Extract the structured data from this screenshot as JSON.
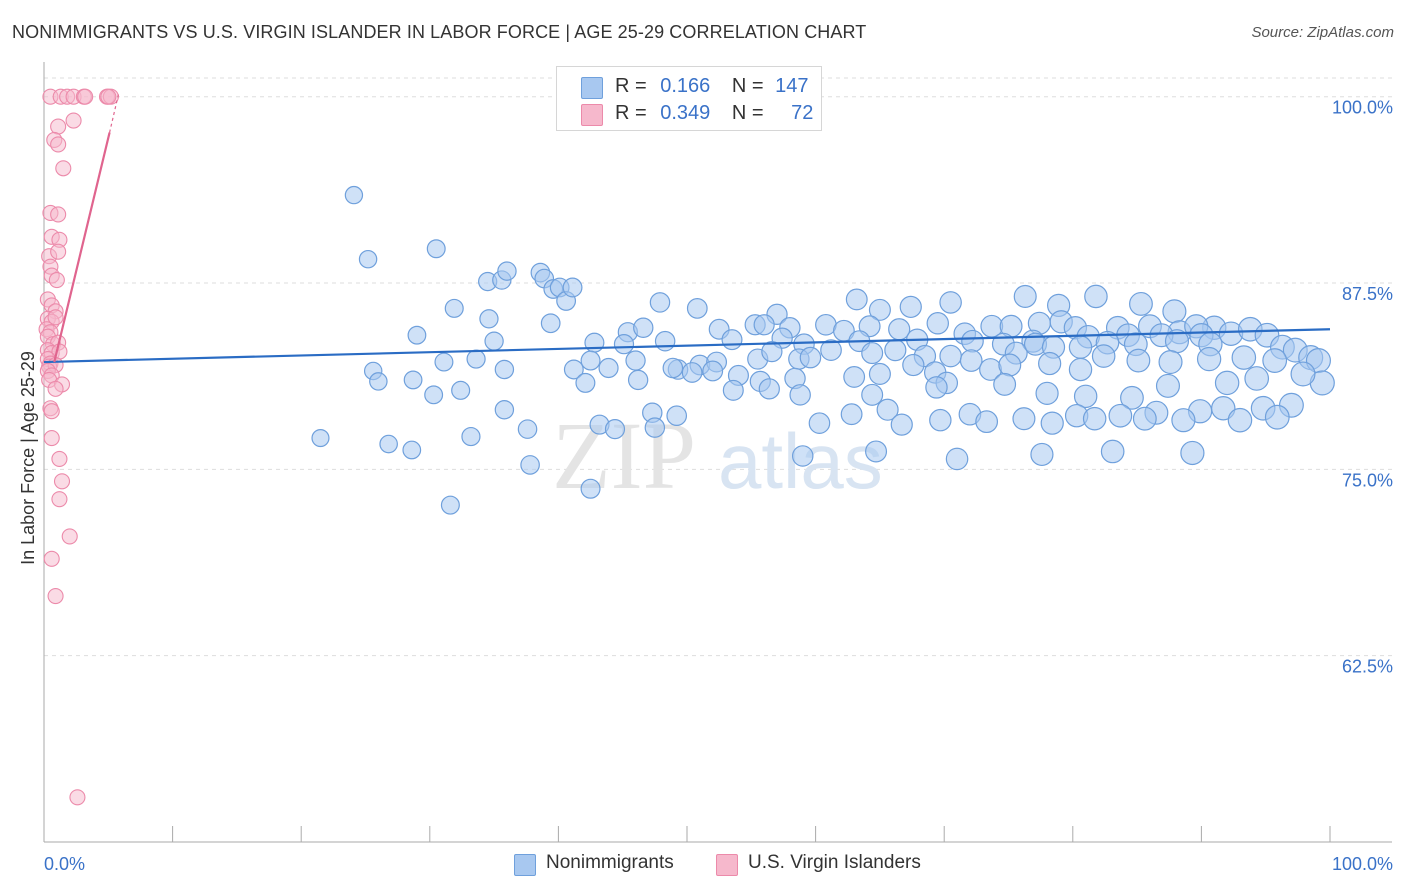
{
  "title": "NONIMMIGRANTS VS U.S. VIRGIN ISLANDER IN LABOR FORCE | AGE 25-29 CORRELATION CHART",
  "source": "Source: ZipAtlas.com",
  "watermark": {
    "zip": "ZIP",
    "atlas": "atlas"
  },
  "colors": {
    "blue_fill": "#a8c8f0",
    "blue_stroke": "#6fa0dc",
    "blue_line": "#2a6cc4",
    "pink_fill": "#f6b8cc",
    "pink_stroke": "#ec8aaa",
    "pink_line": "#e0648e",
    "axis_label": "#3a72c8",
    "grid": "#dddddd"
  },
  "legend": {
    "r_label": "R =",
    "n_label": "N =",
    "series": [
      {
        "r": "0.166",
        "n": "147"
      },
      {
        "r": "0.349",
        "n": "72"
      }
    ]
  },
  "chart_data": {
    "type": "scatter",
    "ylabel": "In Labor Force | Age 25-29",
    "xlim": [
      0,
      100
    ],
    "ylim": [
      50,
      103
    ],
    "x_tick_labels": [
      "0.0%",
      "100.0%"
    ],
    "y_ticks": [
      62.5,
      75.0,
      87.5,
      100.0
    ],
    "y_tick_labels": [
      "62.5%",
      "75.0%",
      "87.5%",
      "100.0%"
    ],
    "grid": true,
    "legend_position": "top-center",
    "series": [
      {
        "name": "Nonimmigrants",
        "color": "#a8c8f0",
        "trend": {
          "x0": 0,
          "y0": 82.2,
          "x1": 100,
          "y1": 84.4
        },
        "points": [
          [
            24.1,
            93.4
          ],
          [
            25.2,
            89.1
          ],
          [
            30.5,
            89.8
          ],
          [
            34.5,
            87.6
          ],
          [
            35.6,
            87.7
          ],
          [
            36.0,
            88.3
          ],
          [
            38.6,
            88.2
          ],
          [
            38.9,
            87.8
          ],
          [
            39.6,
            87.1
          ],
          [
            40.1,
            87.2
          ],
          [
            40.6,
            86.3
          ],
          [
            41.1,
            87.2
          ],
          [
            47.9,
            86.2
          ],
          [
            50.8,
            85.8
          ],
          [
            57.0,
            85.4
          ],
          [
            63.2,
            86.4
          ],
          [
            65.0,
            85.7
          ],
          [
            67.4,
            85.9
          ],
          [
            70.5,
            86.2
          ],
          [
            76.3,
            86.6
          ],
          [
            78.9,
            86.0
          ],
          [
            81.8,
            86.6
          ],
          [
            85.3,
            86.1
          ],
          [
            87.9,
            85.6
          ],
          [
            91.0,
            84.5
          ],
          [
            31.9,
            85.8
          ],
          [
            34.6,
            85.1
          ],
          [
            39.4,
            84.8
          ],
          [
            45.4,
            84.2
          ],
          [
            46.6,
            84.5
          ],
          [
            52.5,
            84.4
          ],
          [
            55.3,
            84.7
          ],
          [
            56.0,
            84.7
          ],
          [
            58.0,
            84.5
          ],
          [
            60.8,
            84.7
          ],
          [
            62.2,
            84.3
          ],
          [
            64.2,
            84.6
          ],
          [
            66.5,
            84.4
          ],
          [
            69.5,
            84.8
          ],
          [
            71.6,
            84.1
          ],
          [
            73.7,
            84.6
          ],
          [
            75.2,
            84.6
          ],
          [
            77.4,
            84.8
          ],
          [
            79.1,
            84.9
          ],
          [
            80.2,
            84.5
          ],
          [
            83.5,
            84.5
          ],
          [
            86.0,
            84.6
          ],
          [
            88.3,
            84.2
          ],
          [
            89.6,
            84.6
          ],
          [
            92.3,
            84.1
          ],
          [
            93.8,
            84.4
          ],
          [
            29.0,
            84.0
          ],
          [
            35.0,
            83.6
          ],
          [
            42.8,
            83.5
          ],
          [
            45.1,
            83.4
          ],
          [
            48.3,
            83.6
          ],
          [
            53.5,
            83.7
          ],
          [
            57.4,
            83.8
          ],
          [
            59.1,
            83.4
          ],
          [
            63.4,
            83.6
          ],
          [
            67.9,
            83.7
          ],
          [
            72.2,
            83.6
          ],
          [
            74.6,
            83.4
          ],
          [
            76.9,
            83.6
          ],
          [
            81.2,
            83.9
          ],
          [
            84.3,
            84.0
          ],
          [
            86.9,
            84.0
          ],
          [
            90.0,
            84.0
          ],
          [
            95.1,
            84.0
          ],
          [
            96.3,
            83.2
          ],
          [
            97.3,
            83.0
          ],
          [
            25.6,
            81.6
          ],
          [
            31.1,
            82.2
          ],
          [
            33.6,
            82.4
          ],
          [
            35.8,
            81.7
          ],
          [
            41.2,
            81.7
          ],
          [
            42.5,
            82.3
          ],
          [
            43.9,
            81.8
          ],
          [
            46.0,
            82.3
          ],
          [
            49.3,
            81.7
          ],
          [
            51.0,
            82.0
          ],
          [
            52.3,
            82.2
          ],
          [
            55.5,
            82.4
          ],
          [
            56.6,
            82.9
          ],
          [
            58.7,
            82.4
          ],
          [
            59.6,
            82.5
          ],
          [
            61.2,
            83.0
          ],
          [
            64.4,
            82.8
          ],
          [
            66.2,
            83.0
          ],
          [
            68.5,
            82.6
          ],
          [
            70.5,
            82.6
          ],
          [
            72.1,
            82.3
          ],
          [
            73.6,
            81.7
          ],
          [
            75.6,
            82.8
          ],
          [
            77.1,
            83.4
          ],
          [
            78.5,
            83.2
          ],
          [
            80.6,
            83.2
          ],
          [
            82.7,
            83.5
          ],
          [
            84.9,
            83.4
          ],
          [
            88.1,
            83.6
          ],
          [
            90.7,
            83.4
          ],
          [
            98.5,
            82.5
          ],
          [
            28.7,
            81.0
          ],
          [
            32.4,
            80.3
          ],
          [
            42.1,
            80.8
          ],
          [
            50.4,
            81.5
          ],
          [
            52.0,
            81.6
          ],
          [
            54.0,
            81.3
          ],
          [
            55.7,
            80.9
          ],
          [
            58.4,
            81.1
          ],
          [
            63.0,
            81.2
          ],
          [
            65.0,
            81.4
          ],
          [
            67.6,
            82.0
          ],
          [
            69.3,
            81.5
          ],
          [
            70.2,
            80.8
          ],
          [
            75.1,
            82.0
          ],
          [
            78.2,
            82.1
          ],
          [
            80.6,
            81.7
          ],
          [
            82.4,
            82.6
          ],
          [
            85.1,
            82.3
          ],
          [
            87.6,
            82.2
          ],
          [
            90.6,
            82.4
          ],
          [
            93.3,
            82.5
          ],
          [
            95.7,
            82.3
          ],
          [
            99.1,
            82.3
          ],
          [
            26.0,
            80.9
          ],
          [
            30.3,
            80.0
          ],
          [
            46.2,
            81.0
          ],
          [
            48.9,
            81.8
          ],
          [
            53.6,
            80.3
          ],
          [
            56.4,
            80.4
          ],
          [
            58.8,
            80.0
          ],
          [
            64.4,
            80.0
          ],
          [
            69.4,
            80.5
          ],
          [
            74.7,
            80.7
          ],
          [
            78.0,
            80.1
          ],
          [
            81.0,
            79.9
          ],
          [
            84.6,
            79.8
          ],
          [
            87.4,
            80.6
          ],
          [
            92.0,
            80.8
          ],
          [
            94.3,
            81.1
          ],
          [
            99.4,
            80.8
          ],
          [
            97.9,
            81.4
          ],
          [
            35.8,
            79.0
          ],
          [
            43.2,
            78.0
          ],
          [
            47.3,
            78.8
          ],
          [
            62.8,
            78.7
          ],
          [
            65.6,
            79.0
          ],
          [
            72.0,
            78.7
          ],
          [
            76.2,
            78.4
          ],
          [
            80.3,
            78.6
          ],
          [
            83.7,
            78.6
          ],
          [
            86.5,
            78.8
          ],
          [
            89.9,
            78.9
          ],
          [
            91.7,
            79.1
          ],
          [
            94.8,
            79.1
          ],
          [
            97.0,
            79.3
          ],
          [
            21.5,
            77.1
          ],
          [
            26.8,
            76.7
          ],
          [
            28.6,
            76.3
          ],
          [
            33.2,
            77.2
          ],
          [
            37.6,
            77.7
          ],
          [
            44.4,
            77.7
          ],
          [
            47.5,
            77.8
          ],
          [
            49.2,
            78.6
          ],
          [
            60.3,
            78.1
          ],
          [
            66.7,
            78.0
          ],
          [
            69.7,
            78.3
          ],
          [
            73.3,
            78.2
          ],
          [
            78.4,
            78.1
          ],
          [
            81.7,
            78.4
          ],
          [
            85.6,
            78.4
          ],
          [
            88.6,
            78.3
          ],
          [
            93.0,
            78.3
          ],
          [
            95.9,
            78.5
          ],
          [
            37.8,
            75.3
          ],
          [
            42.5,
            73.7
          ],
          [
            31.6,
            72.6
          ],
          [
            59.0,
            75.9
          ],
          [
            64.7,
            76.2
          ],
          [
            71.0,
            75.7
          ],
          [
            77.6,
            76.0
          ],
          [
            83.1,
            76.2
          ],
          [
            89.3,
            76.1
          ]
        ]
      },
      {
        "name": "U.S. Virgin Islanders",
        "color": "#f6b8cc",
        "trend": {
          "x0": 0.8,
          "y0": 82.2,
          "x1": 5.1,
          "y1": 97.6
        },
        "trend_dashed": {
          "x0": 5.1,
          "y0": 97.6,
          "x1": 5.8,
          "y1": 100.2
        },
        "points": [
          [
            0.5,
            100.0
          ],
          [
            1.3,
            100.0
          ],
          [
            1.8,
            100.0
          ],
          [
            2.3,
            100.0
          ],
          [
            3.1,
            100.0
          ],
          [
            3.2,
            100.0
          ],
          [
            4.9,
            100.0
          ],
          [
            5.2,
            100.0
          ],
          [
            5.0,
            100.0
          ],
          [
            1.1,
            98.0
          ],
          [
            2.3,
            98.4
          ],
          [
            0.8,
            97.1
          ],
          [
            1.1,
            96.8
          ],
          [
            1.5,
            95.2
          ],
          [
            0.5,
            92.2
          ],
          [
            1.1,
            92.1
          ],
          [
            0.6,
            90.6
          ],
          [
            1.2,
            90.4
          ],
          [
            0.4,
            89.3
          ],
          [
            1.1,
            89.6
          ],
          [
            0.5,
            88.6
          ],
          [
            0.6,
            88.0
          ],
          [
            1.0,
            87.7
          ],
          [
            0.3,
            86.4
          ],
          [
            0.6,
            86.0
          ],
          [
            0.9,
            85.6
          ],
          [
            0.3,
            85.1
          ],
          [
            0.6,
            84.9
          ],
          [
            0.9,
            85.2
          ],
          [
            0.2,
            84.4
          ],
          [
            0.5,
            84.2
          ],
          [
            0.3,
            83.9
          ],
          [
            0.7,
            83.4
          ],
          [
            1.1,
            83.5
          ],
          [
            0.3,
            83.0
          ],
          [
            0.6,
            82.8
          ],
          [
            1.2,
            82.9
          ],
          [
            0.3,
            82.4
          ],
          [
            0.5,
            82.1
          ],
          [
            0.4,
            81.9
          ],
          [
            0.9,
            82.0
          ],
          [
            0.3,
            81.6
          ],
          [
            0.6,
            81.3
          ],
          [
            0.4,
            81.0
          ],
          [
            1.4,
            80.7
          ],
          [
            0.9,
            80.4
          ],
          [
            0.5,
            79.1
          ],
          [
            0.6,
            78.9
          ],
          [
            0.6,
            77.1
          ],
          [
            1.2,
            75.7
          ],
          [
            1.4,
            74.2
          ],
          [
            1.2,
            73.0
          ],
          [
            2.0,
            70.5
          ],
          [
            0.6,
            69.0
          ],
          [
            0.9,
            66.5
          ],
          [
            2.6,
            53.0
          ]
        ]
      }
    ]
  }
}
